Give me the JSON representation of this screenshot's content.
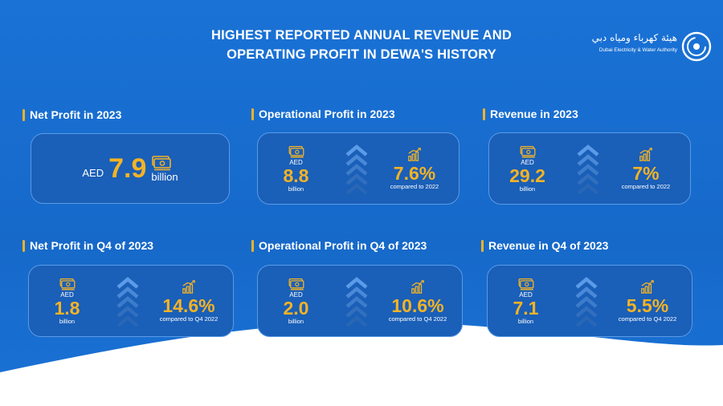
{
  "header": {
    "title_line1": "HIGHEST REPORTED ANNUAL REVENUE AND",
    "title_line2": "OPERATING PROFIT IN DEWA'S HISTORY"
  },
  "logo": {
    "arabic": "هيئة كهرباء ومياه دبي",
    "english": "Dubai Electricity & Water Authority"
  },
  "colors": {
    "background": "#1a6fd0",
    "card": "#1a5fb8",
    "accent": "#f5b324",
    "text": "#ffffff"
  },
  "icons": {
    "money": "money-stack-icon",
    "growth": "growth-chart-icon",
    "arrows": "chevron-up-icon"
  },
  "net_profit_2023": {
    "heading": "Net Profit in 2023",
    "currency": "AED",
    "value": "7.9",
    "unit": "billion"
  },
  "op_profit_2023": {
    "heading": "Operational Profit in 2023",
    "currency": "AED",
    "value": "8.8",
    "unit": "billion",
    "pct": "7.6%",
    "compare": "compared to 2022"
  },
  "revenue_2023": {
    "heading": "Revenue in 2023",
    "currency": "AED",
    "value": "29.2",
    "unit": "billion",
    "pct": "7%",
    "compare": "compared to 2022"
  },
  "net_profit_q4": {
    "heading": "Net Profit in Q4 of 2023",
    "currency": "AED",
    "value": "1.8",
    "unit": "billion",
    "pct": "14.6%",
    "compare": "compared to Q4 2022"
  },
  "op_profit_q4": {
    "heading": "Operational Profit in Q4 of 2023",
    "currency": "AED",
    "value": "2.0",
    "unit": "billion",
    "pct": "10.6%",
    "compare": "compared to Q4 2022"
  },
  "revenue_q4": {
    "heading": "Revenue in Q4 of 2023",
    "currency": "AED",
    "value": "7.1",
    "unit": "billion",
    "pct": "5.5%",
    "compare": "compared to Q4 2022"
  }
}
